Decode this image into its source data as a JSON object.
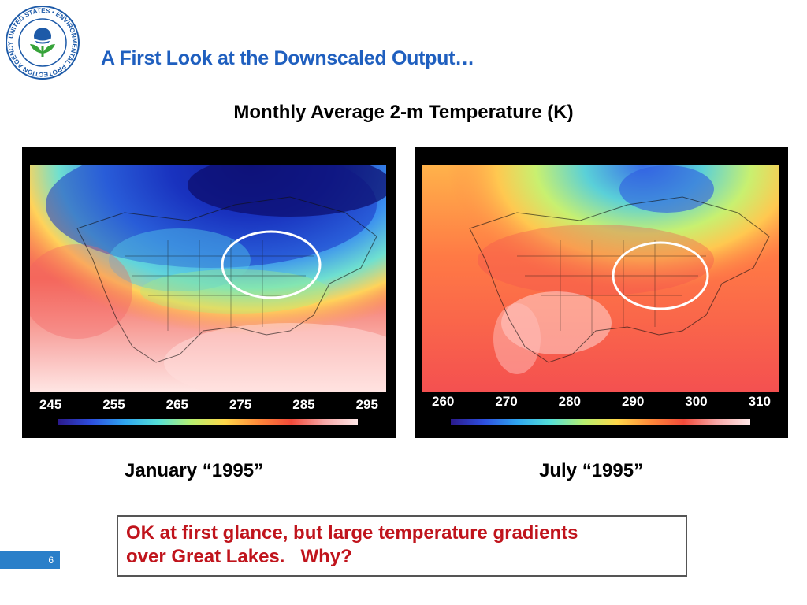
{
  "logo": {
    "seal_text": "UNITED STATES ENVIRONMENTAL PROTECTION AGENCY",
    "icon": "epa-seal-icon"
  },
  "slide": {
    "title": "A First Look at the Downscaled Output…",
    "subtitle": "Monthly Average 2-m Temperature (K)",
    "page_number": "6"
  },
  "panels": {
    "january": {
      "caption": "January “1995”",
      "ticks": [
        "245",
        "255",
        "265",
        "275",
        "285",
        "295"
      ]
    },
    "july": {
      "caption": "July “1995”",
      "ticks": [
        "260",
        "270",
        "280",
        "290",
        "300",
        "310"
      ]
    }
  },
  "callout": {
    "line1": "OK at first glance, but large temperature gradients",
    "line2": "over Great Lakes.   Why?"
  },
  "colors": {
    "title": "#1f5fbf",
    "callout_text": "#c0141c",
    "highlight_circle": "#ffffff"
  }
}
